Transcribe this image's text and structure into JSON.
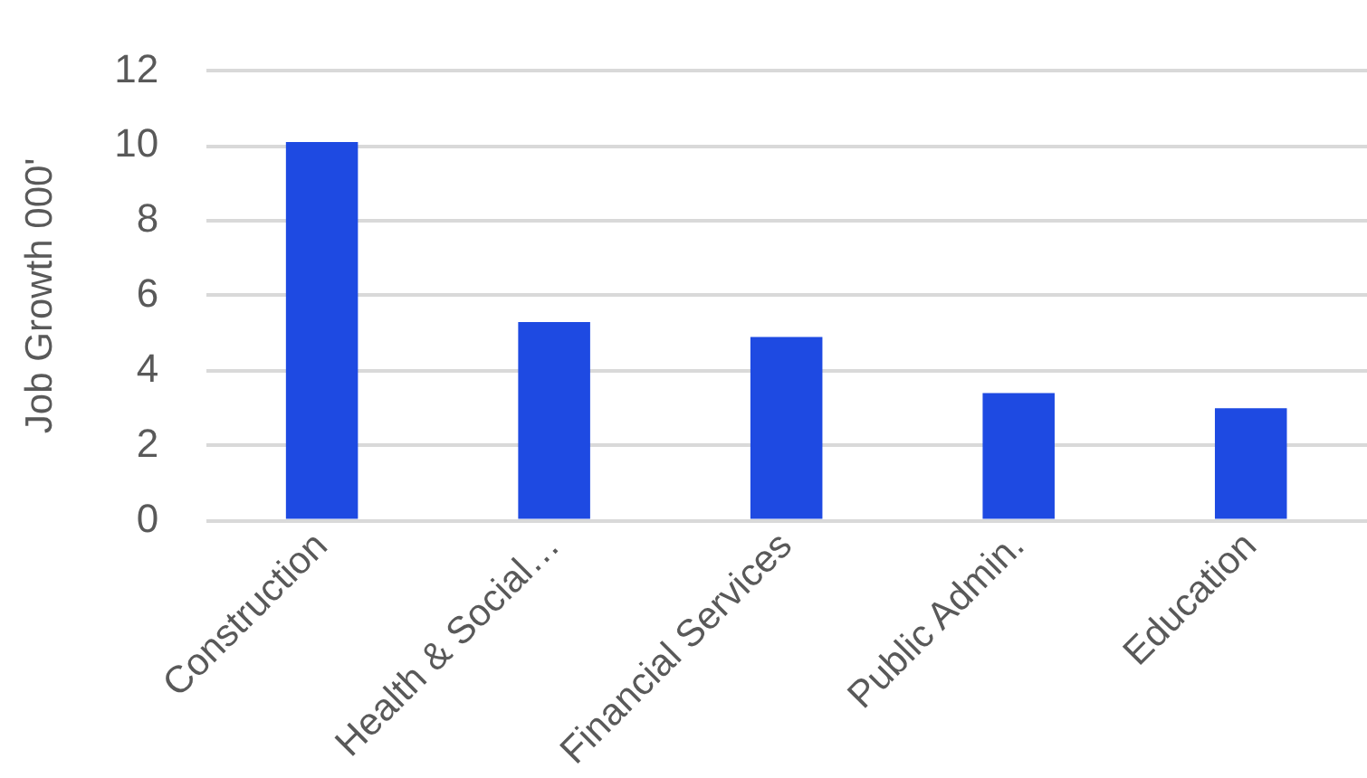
{
  "chart_data": {
    "type": "bar",
    "ylabel": "Job Growth 000'",
    "categories": [
      "Construction",
      "Health & Social…",
      "Financial Services",
      "Public Admin.",
      "Education"
    ],
    "values": [
      10.1,
      5.3,
      4.9,
      3.4,
      3.0
    ],
    "color": "#1e4ae2",
    "ylim": [
      0,
      12
    ],
    "yticks": [
      0,
      2,
      4,
      6,
      8,
      10,
      12
    ],
    "grid": "y",
    "legend": false
  }
}
